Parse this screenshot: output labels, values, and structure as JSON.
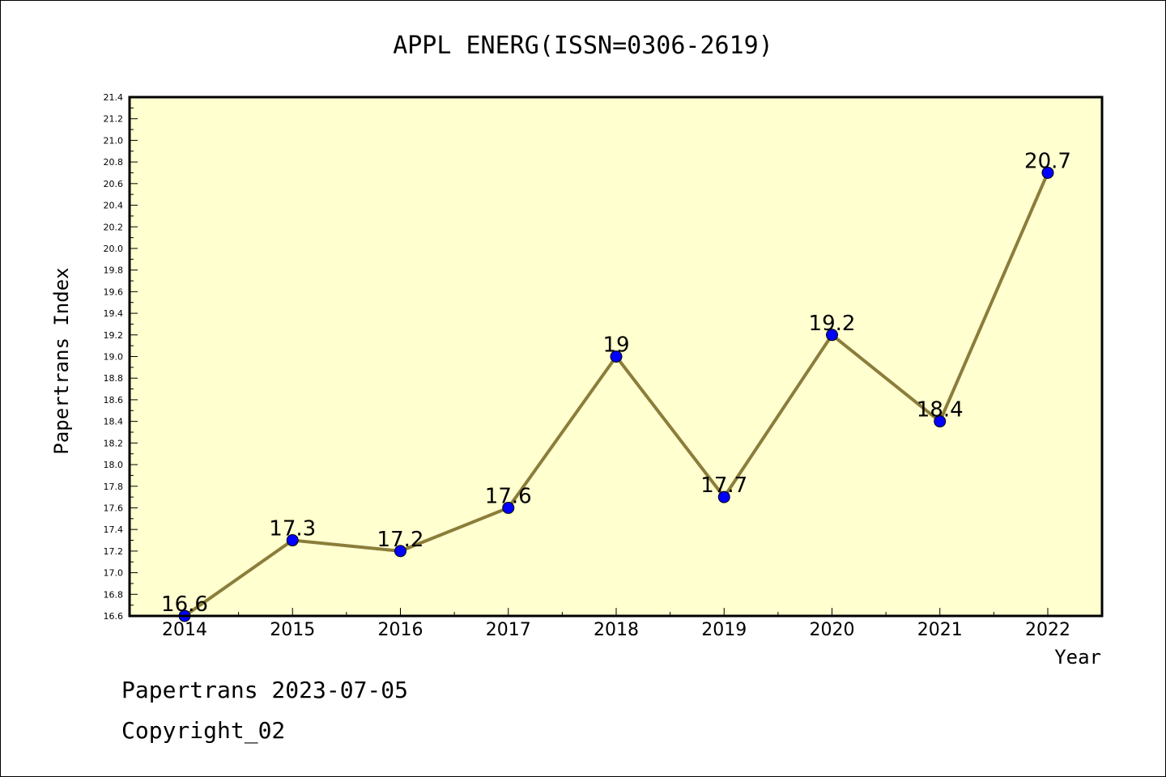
{
  "chart_data": {
    "type": "line",
    "title": "APPL ENERG(ISSN=0306-2619)",
    "xlabel": "Year",
    "ylabel": "Papertrans Index",
    "categories": [
      "2014",
      "2015",
      "2016",
      "2017",
      "2018",
      "2019",
      "2020",
      "2021",
      "2022"
    ],
    "series": [
      {
        "values": [
          16.6,
          17.3,
          17.2,
          17.6,
          19.0,
          17.7,
          19.2,
          18.4,
          20.7
        ],
        "labels": [
          "16.6",
          "17.3",
          "17.2",
          "17.6",
          "19",
          "17.7",
          "19.2",
          "18.4",
          "20.7"
        ],
        "line_color": "#8b7d3a",
        "marker_color": "#0000ff"
      }
    ],
    "ylim": [
      16.6,
      21.4
    ],
    "y_ticks": [
      "16.6",
      "16.8",
      "17.0",
      "17.2",
      "17.4",
      "17.6",
      "17.8",
      "18.0",
      "18.2",
      "18.4",
      "18.6",
      "18.8",
      "19.0",
      "19.2",
      "19.4",
      "19.6",
      "19.8",
      "20.0",
      "20.2",
      "20.4",
      "20.6",
      "20.8",
      "21.0",
      "21.2",
      "21.4"
    ],
    "plot_background": "#ffffd0",
    "grid": false,
    "legend": "none"
  },
  "footer": {
    "date_line": "Papertrans 2023-07-05",
    "copyright_line": "Copyright_02"
  }
}
